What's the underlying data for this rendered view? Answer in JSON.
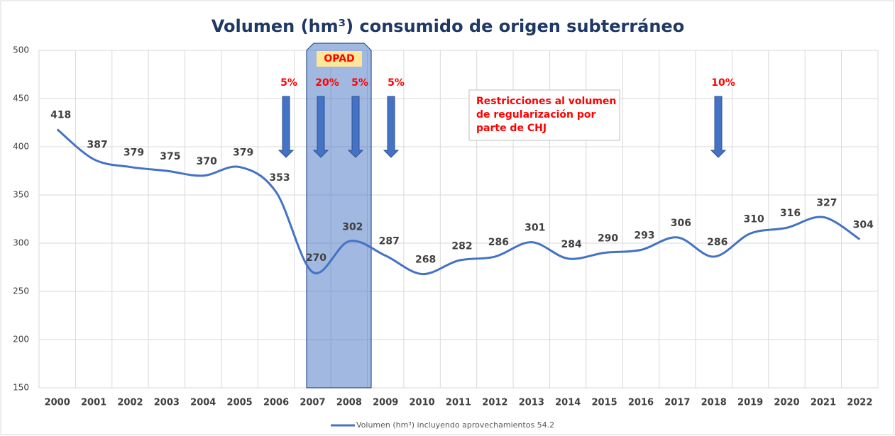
{
  "chart_data": {
    "type": "line",
    "title": "Volumen (hm³) consumido de origen subterráneo",
    "categories": [
      "2000",
      "2001",
      "2002",
      "2003",
      "2004",
      "2005",
      "2006",
      "2007",
      "2008",
      "2009",
      "2010",
      "2011",
      "2012",
      "2013",
      "2014",
      "2015",
      "2016",
      "2017",
      "2018",
      "2019",
      "2020",
      "2021",
      "2022"
    ],
    "series": [
      {
        "name": "Volumen (hm³) incluyendo aprovechamientos 54.2",
        "color": "#4472c4",
        "values": [
          418,
          387,
          379,
          375,
          370,
          379,
          353,
          270,
          302,
          287,
          268,
          282,
          286,
          301,
          284,
          290,
          293,
          306,
          286,
          310,
          316,
          327,
          304
        ]
      }
    ],
    "ylim": [
      150,
      500
    ],
    "yticks": [
      150,
      200,
      250,
      300,
      350,
      400,
      450,
      500
    ],
    "grid": true,
    "band_label": "OPAD",
    "restriction_labels": [
      "5%",
      "20%",
      "5%",
      "5%",
      "10%"
    ],
    "note": [
      "Restricciones al volumen",
      "de regularización por",
      "parte de CHJ"
    ]
  }
}
